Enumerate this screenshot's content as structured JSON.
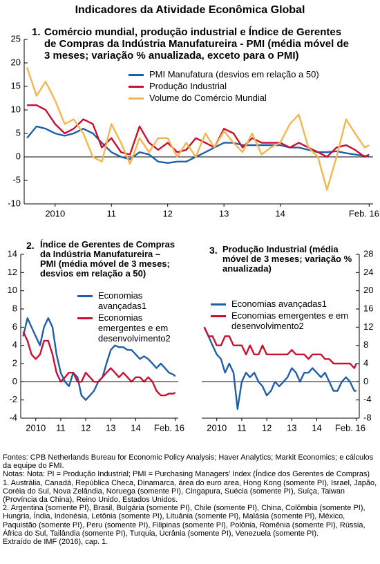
{
  "title": "Indicadores da Atividade Econômica Global",
  "notes": [
    "Fontes: CPB Netherlands Bureau for Economic Policy Analysis; Haver Analytics; Markit Economics; e cálculos da equipe do FMI.",
    "Notas: Nota: PI = Produção Industrial; PMI = Purchasing Managers' Index (Índice dos Gerentes de Compras)",
    "1. Austrália, Canadá, República Checa, Dinamarca, área do euro area, Hong Kong (somente PI), Israel, Japão, Coréia do Sul, Nova Zelândia, Noruega (somente PI), Cingapura, Suécia (somente PI), Suíça, Taiwan (Província da China), Reino Unido, Estados Unidos.",
    "2. Argentina (somente PI), Brasil, Bulgária (somente PI), Chile (somente PI), China, Colômbia (somente PI), Hungria, Índia, Indonésia, Letônia (somente PI), Lituânia (somente PI), Malásia (somente PI), México, Paquistão (somente PI), Peru (somente PI), Filipinas (somente PI), Polônia, Romênia (somente PI), Rússia, África do Sul, Tailândia (somente PI), Turquia, Ucrânia (somente PI), Venezuela (somente PI).",
    "Extraído de IMF (2016), cap. 1."
  ],
  "chart_data": [
    {
      "type": "line",
      "number": "1.",
      "title": "Comércio mundial, produção industrial e Índice de Gerentes de Compras da Indústria Manufatureira - PMI (média móvel de 3 meses; variação % anualizada, exceto para o PMI)",
      "x": [
        2010,
        2010.17,
        2010.33,
        2010.5,
        2010.67,
        2010.83,
        2011,
        2011.17,
        2011.33,
        2011.5,
        2011.67,
        2011.83,
        2012,
        2012.17,
        2012.33,
        2012.5,
        2012.67,
        2012.83,
        2013,
        2013.17,
        2013.33,
        2013.5,
        2013.67,
        2013.83,
        2014,
        2014.17,
        2014.33,
        2014.5,
        2014.67,
        2014.83,
        2015,
        2015.17,
        2015.33,
        2015.5,
        2015.67,
        2015.83,
        2016,
        2016.08
      ],
      "xlim": [
        2009.95,
        2016.15
      ],
      "xticks": [
        {
          "value": 2010.5,
          "label": "2010"
        },
        {
          "value": 2011.5,
          "label": "11"
        },
        {
          "value": 2012.5,
          "label": "12"
        },
        {
          "value": 2013.5,
          "label": "13"
        },
        {
          "value": 2014.5,
          "label": "14"
        },
        {
          "value": 2016.08,
          "label": "Feb. 16"
        }
      ],
      "ylim": [
        -10,
        25
      ],
      "yticks": [
        -10,
        -5,
        0,
        5,
        10,
        15,
        20,
        25
      ],
      "y_axis_side": "left",
      "zero_line": true,
      "series": [
        {
          "name": "PMI Manufatura (desvios em relação a 50)",
          "color": "#1f5ea8",
          "values": [
            4,
            6.5,
            6,
            5,
            4.5,
            5,
            6,
            5,
            3,
            1,
            0,
            -0.5,
            1,
            0.5,
            -1,
            -1.3,
            -1,
            -1,
            0,
            1,
            2,
            3,
            3,
            2.5,
            2.5,
            2.5,
            2.5,
            2.5,
            2,
            2,
            1.5,
            1,
            1,
            1.2,
            0.8,
            0.5,
            0.2,
            0
          ]
        },
        {
          "name": "Produção Industrial",
          "color": "#c8102e",
          "values": [
            11,
            11,
            10,
            7,
            5,
            6,
            8,
            7,
            2,
            4,
            1,
            0.5,
            6.5,
            3,
            1.5,
            3,
            1,
            1.5,
            4,
            3,
            2,
            6,
            5,
            2,
            4,
            3,
            3,
            3,
            2,
            3,
            2,
            1,
            0,
            2,
            2.5,
            1.5,
            0,
            0.5
          ]
        },
        {
          "name": "Volume do Comércio Mundial",
          "color": "#f5b54e",
          "values": [
            19,
            13,
            16,
            12,
            7,
            8,
            5,
            0,
            -1,
            7,
            3,
            -1.5,
            4,
            1,
            4,
            4,
            0,
            3,
            0,
            5,
            2,
            5.5,
            3,
            1,
            5,
            0.5,
            2,
            3,
            7,
            9,
            2,
            0,
            -7,
            0,
            8,
            5,
            2,
            2.5
          ]
        }
      ]
    },
    {
      "type": "line",
      "number": "2.",
      "title": "Índice de Gerentes de Compras da Indústria Manufatureira – PMI (média móvel de 3 meses; desvios em relação a 50)",
      "x": [
        2010,
        2010.17,
        2010.33,
        2010.5,
        2010.67,
        2010.83,
        2011,
        2011.17,
        2011.33,
        2011.5,
        2011.67,
        2011.83,
        2012,
        2012.17,
        2012.33,
        2012.5,
        2012.67,
        2012.83,
        2013,
        2013.17,
        2013.33,
        2013.5,
        2013.67,
        2013.83,
        2014,
        2014.17,
        2014.33,
        2014.5,
        2014.67,
        2014.83,
        2015,
        2015.17,
        2015.33,
        2015.5,
        2015.67,
        2015.83,
        2016,
        2016.08
      ],
      "xlim": [
        2009.9,
        2016.2
      ],
      "xticks": [
        {
          "value": 2010.5,
          "label": "2010"
        },
        {
          "value": 2011.5,
          "label": "11"
        },
        {
          "value": 2012.5,
          "label": "12"
        },
        {
          "value": 2013.5,
          "label": "13"
        },
        {
          "value": 2014.5,
          "label": "14"
        },
        {
          "value": 2016.08,
          "label": "Feb. 16"
        }
      ],
      "ylim": [
        -4,
        14
      ],
      "yticks": [
        -4,
        -2,
        0,
        2,
        4,
        6,
        8,
        10,
        12,
        14
      ],
      "y_axis_side": "left",
      "zero_line": true,
      "series": [
        {
          "name": "Economias avançadas1",
          "color": "#1f5ea8",
          "values": [
            5,
            7,
            6,
            5,
            4,
            6,
            7,
            6,
            3,
            1,
            0,
            -0.5,
            1,
            0.5,
            -1.5,
            -2,
            -1.5,
            -1,
            0,
            0.5,
            2,
            3.5,
            4,
            3.8,
            3.8,
            3.5,
            3.5,
            3,
            2.5,
            2.8,
            2.5,
            2,
            1.5,
            2,
            1.5,
            1,
            0.8,
            0.6
          ]
        },
        {
          "name": "Economias emergentes e em desenvolvimento2",
          "color": "#c8102e",
          "values": [
            5.5,
            4.5,
            3,
            2.5,
            3,
            4.5,
            4.5,
            3,
            1,
            0,
            0.5,
            1,
            1,
            0,
            0,
            1,
            0.5,
            0,
            0,
            0.5,
            1,
            1.5,
            1,
            0.5,
            1,
            0.5,
            0,
            0.5,
            0.5,
            0,
            0.5,
            0,
            -1,
            -1.5,
            -1.5,
            -1.3,
            -1.3,
            -1.2
          ]
        }
      ]
    },
    {
      "type": "line",
      "number": "3.",
      "title": "Produção Industrial (média móvel de 3 meses; variação % anualizada)",
      "x": [
        2010,
        2010.17,
        2010.33,
        2010.5,
        2010.67,
        2010.83,
        2011,
        2011.17,
        2011.33,
        2011.5,
        2011.67,
        2011.83,
        2012,
        2012.17,
        2012.33,
        2012.5,
        2012.67,
        2012.83,
        2013,
        2013.17,
        2013.33,
        2013.5,
        2013.67,
        2013.83,
        2014,
        2014.17,
        2014.33,
        2014.5,
        2014.67,
        2014.83,
        2015,
        2015.17,
        2015.33,
        2015.5,
        2015.67,
        2015.83,
        2016,
        2016.08
      ],
      "xlim": [
        2009.9,
        2016.2
      ],
      "xticks": [
        {
          "value": 2010.5,
          "label": "2010"
        },
        {
          "value": 2011.5,
          "label": "11"
        },
        {
          "value": 2012.5,
          "label": "12"
        },
        {
          "value": 2013.5,
          "label": "13"
        },
        {
          "value": 2014.5,
          "label": "14"
        },
        {
          "value": 2016.08,
          "label": "Feb. 16"
        }
      ],
      "ylim": [
        -8,
        28
      ],
      "yticks": [
        -8,
        -4,
        0,
        4,
        8,
        12,
        16,
        20,
        24,
        28
      ],
      "y_axis_side": "right",
      "zero_line": true,
      "series": [
        {
          "name": "Economias avançadas1",
          "color": "#1f5ea8",
          "values": [
            12,
            10,
            8,
            6,
            5,
            2,
            4,
            2,
            -6,
            0,
            2,
            1,
            2,
            0,
            -1,
            -3,
            -2,
            0,
            -1,
            0,
            1,
            3,
            2,
            0,
            2,
            2,
            3,
            2,
            1,
            2,
            0,
            -2,
            -2,
            0,
            1,
            0,
            -2,
            -2
          ]
        },
        {
          "name": "Economias emergentes e em desenvolvimento2",
          "color": "#c8102e",
          "values": [
            12,
            10,
            10,
            8,
            8,
            10,
            10,
            8,
            8,
            8,
            6,
            8,
            6,
            6,
            8,
            6,
            6,
            6,
            6,
            6,
            6,
            7,
            6,
            6,
            6,
            5,
            6,
            6,
            6,
            5,
            5,
            4,
            4,
            4,
            4,
            4,
            3,
            4
          ]
        }
      ]
    }
  ]
}
